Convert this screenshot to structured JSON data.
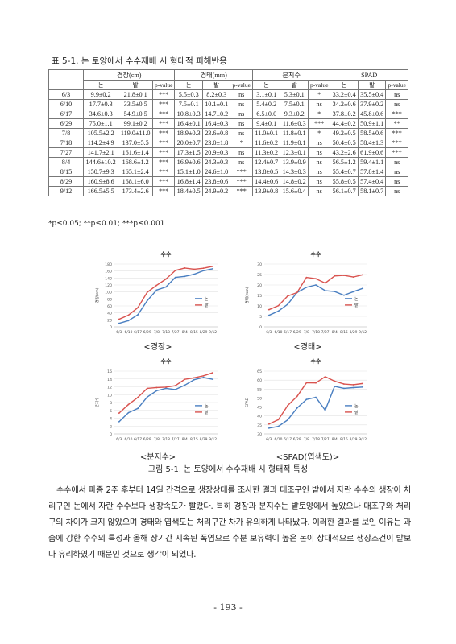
{
  "table": {
    "caption": "표 5-1. 논 토양에서 수수재배 시 형태적 피해반응",
    "groups": [
      "경장(cm)",
      "경태(mm)",
      "분지수",
      "SPAD"
    ],
    "sub_headers": [
      "논",
      "밭",
      "p-value"
    ],
    "rows": [
      {
        "date": "6/3",
        "cells": [
          "9.9±0.2",
          "21.8±0.1",
          "***",
          "5.5±0.3",
          "8.2±0.3",
          "ns",
          "3.1±0.1",
          "5.3±0.1",
          "*",
          "33.2±0.4",
          "35.5±0.4",
          "ns"
        ]
      },
      {
        "date": "6/10",
        "cells": [
          "17.7±0.3",
          "33.5±0.5",
          "***",
          "7.5±0.1",
          "10.1±0.1",
          "ns",
          "5.4±0.2",
          "7.5±0.1",
          "ns",
          "34.2±0.6",
          "37.9±0.2",
          "ns"
        ]
      },
      {
        "date": "6/17",
        "cells": [
          "34.6±0.3",
          "54.9±0.5",
          "***",
          "10.8±0.3",
          "14.7±0.2",
          "ns",
          "6.5±0.0",
          "9.3±0.2",
          "*",
          "37.8±0.2",
          "45.8±0.6",
          "***"
        ]
      },
      {
        "date": "6/29",
        "cells": [
          "75.0±1.1",
          "99.1±0.2",
          "***",
          "16.4±0.1",
          "16.4±0.3",
          "ns",
          "9.4±0.1",
          "11.6±0.3",
          "***",
          "44.4±0.2",
          "50.9±1.1",
          "**"
        ]
      },
      {
        "date": "7/8",
        "cells": [
          "105.5±2.2",
          "119.0±11.0",
          "***",
          "18.9±0.3",
          "23.6±0.8",
          "ns",
          "11.0±0.1",
          "11.8±0.1",
          "*",
          "49.2±0.5",
          "58.5±0.6",
          "***"
        ]
      },
      {
        "date": "7/18",
        "cells": [
          "114.2±4.9",
          "137.0±5.5",
          "***",
          "20.0±0.7",
          "23.0±1.8",
          "*",
          "11.6±0.2",
          "11.9±0.1",
          "ns",
          "50.4±0.5",
          "58.4±1.3",
          "***"
        ]
      },
      {
        "date": "7/27",
        "cells": [
          "141.7±2.1",
          "161.6±1.4",
          "***",
          "17.3±1.5",
          "20.9±0.3",
          "ns",
          "11.3±0.2",
          "12.3±0.1",
          "ns",
          "43.2±2.6",
          "61.9±0.6",
          "***"
        ]
      },
      {
        "date": "8/4",
        "cells": [
          "144.6±10.2",
          "168.6±1.2",
          "***",
          "16.9±0.6",
          "24.3±0.3",
          "ns",
          "12.4±0.7",
          "13.9±0.9",
          "ns",
          "56.5±1.2",
          "59.4±1.1",
          "ns"
        ]
      },
      {
        "date": "8/15",
        "cells": [
          "150.7±9.3",
          "165.1±2.4",
          "***",
          "15.1±1.0",
          "24.6±1.0",
          "***",
          "13.8±0.5",
          "14.3±0.3",
          "ns",
          "55.4±0.7",
          "57.8±1.4",
          "ns"
        ]
      },
      {
        "date": "8/29",
        "cells": [
          "160.9±8.6",
          "168.1±6.0",
          "***",
          "16.8±1.4",
          "23.8±0.6",
          "***",
          "14.4±0.6",
          "14.8±0.2",
          "ns",
          "55.8±0.5",
          "57.4±0.4",
          "ns"
        ]
      },
      {
        "date": "9/12",
        "cells": [
          "166.5±5.5",
          "173.4±2.6",
          "***",
          "18.4±0.5",
          "24.9±0.2",
          "***",
          "13.9±0.8",
          "15.6±0.4",
          "ns",
          "56.1±0.7",
          "58.1±0.7",
          "ns"
        ]
      }
    ],
    "significance_note": "*p≤0.05; **p≤0.01; ***p≤0.001"
  },
  "chart_data": [
    {
      "type": "line",
      "title": "수수",
      "caption": "<경장>",
      "ylabel": "경장(cm)",
      "categories": [
        "6/3",
        "6/10",
        "6/17",
        "6/29",
        "7/8",
        "7/18",
        "7/27",
        "8/4",
        "8/15",
        "8/29",
        "9/12"
      ],
      "ylim": [
        0,
        180
      ],
      "yticks": [
        0,
        20,
        40,
        60,
        80,
        100,
        120,
        140,
        160,
        180
      ],
      "series": [
        {
          "name": "논",
          "color": "#4a7fc1",
          "values": [
            9.9,
            17.7,
            34.6,
            75.0,
            105.5,
            114.2,
            141.7,
            144.6,
            150.7,
            160.9,
            166.5
          ]
        },
        {
          "name": "밭",
          "color": "#d9534f",
          "values": [
            21.8,
            33.5,
            54.9,
            99.1,
            119.0,
            137.0,
            161.6,
            168.6,
            165.1,
            168.1,
            173.4
          ]
        }
      ]
    },
    {
      "type": "line",
      "title": "수수",
      "caption": "<경태>",
      "ylabel": "경태(mm)",
      "categories": [
        "6/3",
        "6/10",
        "6/17",
        "6/29",
        "7/8",
        "7/18",
        "7/27",
        "8/4",
        "8/15",
        "8/29",
        "9/12"
      ],
      "ylim": [
        0,
        30
      ],
      "yticks": [
        0,
        5,
        10,
        15,
        20,
        25,
        30
      ],
      "series": [
        {
          "name": "논",
          "color": "#4a7fc1",
          "values": [
            5.5,
            7.5,
            10.8,
            16.4,
            18.9,
            20.0,
            17.3,
            16.9,
            15.1,
            16.8,
            18.4
          ]
        },
        {
          "name": "밭",
          "color": "#d9534f",
          "values": [
            8.2,
            10.1,
            14.7,
            16.4,
            23.6,
            23.0,
            20.9,
            24.3,
            24.6,
            23.8,
            24.9
          ]
        }
      ]
    },
    {
      "type": "line",
      "title": "수수",
      "caption": "<분지수>",
      "ylabel": "분지수",
      "categories": [
        "6/3",
        "6/10",
        "6/17",
        "6/29",
        "7/8",
        "7/18",
        "7/27",
        "8/4",
        "8/15",
        "8/29",
        "9/12"
      ],
      "ylim": [
        0,
        16
      ],
      "yticks": [
        0,
        2,
        4,
        6,
        8,
        10,
        12,
        14,
        16
      ],
      "series": [
        {
          "name": "논",
          "color": "#4a7fc1",
          "values": [
            3.1,
            5.4,
            6.5,
            9.4,
            11.0,
            11.6,
            11.3,
            12.4,
            13.8,
            14.4,
            13.9
          ]
        },
        {
          "name": "밭",
          "color": "#d9534f",
          "values": [
            5.3,
            7.5,
            9.3,
            11.6,
            11.8,
            11.9,
            12.3,
            13.9,
            14.3,
            14.8,
            15.6
          ]
        }
      ]
    },
    {
      "type": "line",
      "title": "수수",
      "caption": "<SPAD(엽색도)>",
      "ylabel": "SPAD",
      "categories": [
        "6/3",
        "6/10",
        "6/17",
        "6/29",
        "7/8",
        "7/18",
        "7/27",
        "8/4",
        "8/15",
        "8/29",
        "9/12"
      ],
      "ylim": [
        30,
        65
      ],
      "yticks": [
        30,
        35,
        40,
        45,
        50,
        55,
        60,
        65
      ],
      "series": [
        {
          "name": "논",
          "color": "#4a7fc1",
          "values": [
            33.2,
            34.2,
            37.8,
            44.4,
            49.2,
            50.4,
            43.2,
            56.5,
            55.4,
            55.8,
            56.1
          ]
        },
        {
          "name": "밭",
          "color": "#d9534f",
          "values": [
            35.5,
            37.9,
            45.8,
            50.9,
            58.5,
            58.4,
            61.9,
            59.4,
            57.8,
            57.4,
            58.1
          ]
        }
      ]
    }
  ],
  "figure_caption": "그림 5-1. 논 토양에서 수수재배 시 형태적 특성",
  "body_text": "수수에서 파종 2주 후부터 14일 간격으로 생장상태를 조사한 결과 대조구인 밭에서 자란 수수의 생장이 처리구인 논에서 자란 수수보다 생장속도가 빨랐다. 특히 경장과 분지수는 밭토양에서 높았으나 대조구와 처리구의 차이가 크지 않았으며 경태와 엽색도는 처리구간 차가 유의하게 나타났다. 이러한 결과를 보인 이유는 과습에 강한 수수의 특성과 올해 장기간 지속된 폭염으로 수분 보유력이 높은 논이 상대적으로 생장조건이 밭보다 유리하였기 때문인 것으로 생각이 되었다.",
  "page_number": "- 193 -"
}
